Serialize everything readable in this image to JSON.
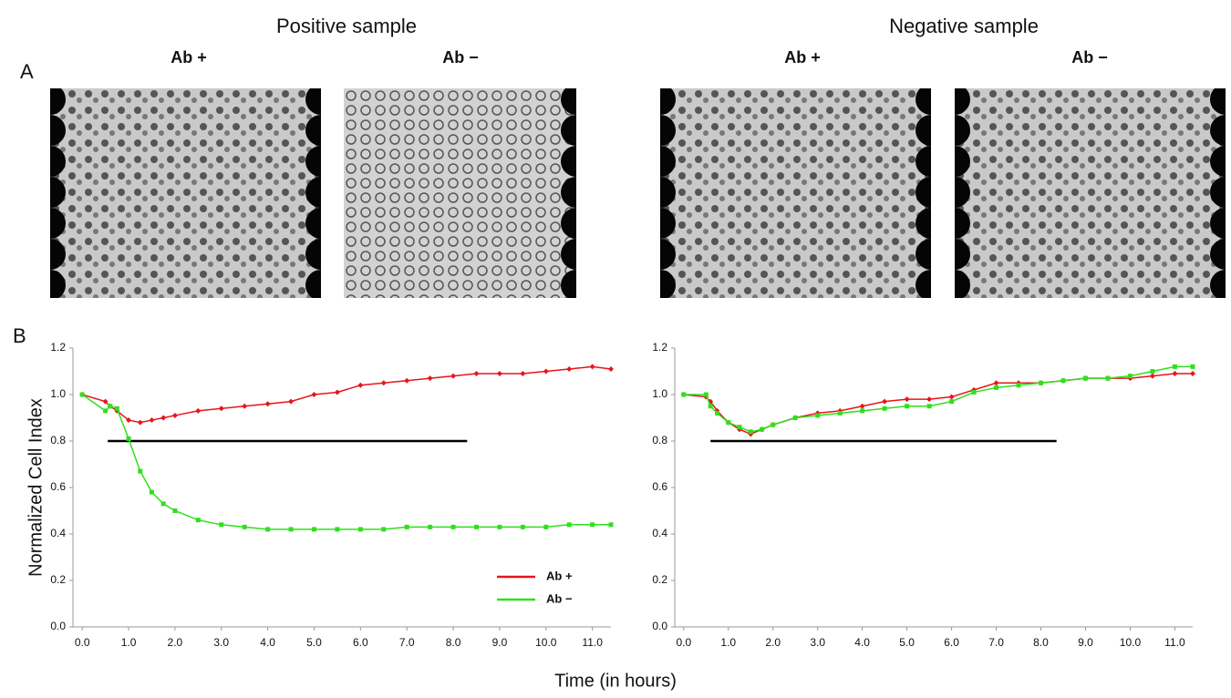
{
  "figure": {
    "panel_a": "A",
    "panel_b": "B",
    "ylabel": "Normalized Cell Index",
    "xlabel": "Time (in hours)"
  },
  "panels": [
    {
      "title": "Positive sample",
      "images": [
        "Ab +",
        "Ab −"
      ]
    },
    {
      "title": "Negative sample",
      "images": [
        "Ab +",
        "Ab −"
      ]
    }
  ],
  "chart_data": [
    {
      "type": "line",
      "legend": "lower right",
      "x": [
        0,
        0.5,
        0.6,
        0.75,
        1.0,
        1.25,
        1.5,
        1.75,
        2.0,
        2.5,
        3.0,
        3.5,
        4.0,
        4.5,
        5.0,
        5.5,
        6.0,
        6.5,
        7.0,
        7.5,
        8.0,
        8.5,
        9.0,
        9.5,
        10.0,
        10.5,
        11.0,
        11.4
      ],
      "series": [
        {
          "name": "Ab +",
          "color": "#e8141c",
          "values": [
            1.0,
            0.97,
            0.95,
            0.93,
            0.89,
            0.88,
            0.89,
            0.9,
            0.91,
            0.93,
            0.94,
            0.95,
            0.96,
            0.97,
            1.0,
            1.01,
            1.04,
            1.05,
            1.06,
            1.07,
            1.08,
            1.09,
            1.09,
            1.09,
            1.1,
            1.11,
            1.12,
            1.11
          ]
        },
        {
          "name": "Ab −",
          "color": "#2fe01c",
          "values": [
            1.0,
            0.93,
            0.95,
            0.94,
            0.81,
            0.67,
            0.58,
            0.53,
            0.5,
            0.46,
            0.44,
            0.43,
            0.42,
            0.42,
            0.42,
            0.42,
            0.42,
            0.42,
            0.43,
            0.43,
            0.43,
            0.43,
            0.43,
            0.43,
            0.43,
            0.44,
            0.44,
            0.44
          ]
        }
      ],
      "hline": {
        "y": 0.8,
        "xmin": 0.55,
        "xmax": 8.3,
        "color": "#000000"
      },
      "xlim": [
        -0.2,
        11.4
      ],
      "ylim": [
        0,
        1.2
      ],
      "xticks": [
        {
          "value": 0,
          "label": "0.0"
        },
        {
          "value": 1,
          "label": "1.0"
        },
        {
          "value": 2,
          "label": "2.0"
        },
        {
          "value": 3,
          "label": "3.0"
        },
        {
          "value": 4,
          "label": "4.0"
        },
        {
          "value": 5,
          "label": "5.0"
        },
        {
          "value": 6,
          "label": "6.0"
        },
        {
          "value": 7,
          "label": "7.0"
        },
        {
          "value": 8,
          "label": "8.0"
        },
        {
          "value": 9,
          "label": "9.0"
        },
        {
          "value": 10,
          "label": "10.0"
        },
        {
          "value": 11,
          "label": "11.0"
        }
      ],
      "yticks": [
        {
          "value": 0,
          "label": "0.0"
        },
        0.2,
        0.4,
        0.6,
        0.8,
        {
          "value": 1,
          "label": "1.0"
        },
        1.2
      ]
    },
    {
      "type": "line",
      "x": [
        0,
        0.5,
        0.6,
        0.75,
        1.0,
        1.25,
        1.5,
        1.75,
        2.0,
        2.5,
        3.0,
        3.5,
        4.0,
        4.5,
        5.0,
        5.5,
        6.0,
        6.5,
        7.0,
        7.5,
        8.0,
        8.5,
        9.0,
        9.5,
        10.0,
        10.5,
        11.0,
        11.4
      ],
      "series": [
        {
          "name": "Ab +",
          "color": "#e8141c",
          "values": [
            1.0,
            0.99,
            0.97,
            0.93,
            0.88,
            0.85,
            0.83,
            0.85,
            0.87,
            0.9,
            0.92,
            0.93,
            0.95,
            0.97,
            0.98,
            0.98,
            0.99,
            1.02,
            1.05,
            1.05,
            1.05,
            1.06,
            1.07,
            1.07,
            1.07,
            1.08,
            1.09,
            1.09
          ]
        },
        {
          "name": "Ab −",
          "color": "#2fe01c",
          "values": [
            1.0,
            1.0,
            0.95,
            0.92,
            0.88,
            0.86,
            0.84,
            0.85,
            0.87,
            0.9,
            0.91,
            0.92,
            0.93,
            0.94,
            0.95,
            0.95,
            0.97,
            1.01,
            1.03,
            1.04,
            1.05,
            1.06,
            1.07,
            1.07,
            1.08,
            1.1,
            1.12,
            1.12
          ]
        }
      ],
      "hline": {
        "y": 0.8,
        "xmin": 0.6,
        "xmax": 8.35,
        "color": "#000000"
      },
      "xlim": [
        -0.2,
        11.4
      ],
      "ylim": [
        0,
        1.2
      ],
      "xticks": [
        {
          "value": 0,
          "label": "0.0"
        },
        {
          "value": 1,
          "label": "1.0"
        },
        {
          "value": 2,
          "label": "2.0"
        },
        {
          "value": 3,
          "label": "3.0"
        },
        {
          "value": 4,
          "label": "4.0"
        },
        {
          "value": 5,
          "label": "5.0"
        },
        {
          "value": 6,
          "label": "6.0"
        },
        {
          "value": 7,
          "label": "7.0"
        },
        {
          "value": 8,
          "label": "8.0"
        },
        {
          "value": 9,
          "label": "9.0"
        },
        {
          "value": 10,
          "label": "10.0"
        },
        {
          "value": 11,
          "label": "11.0"
        }
      ],
      "yticks": [
        {
          "value": 0,
          "label": "0.0"
        },
        0.2,
        0.4,
        0.6,
        0.8,
        {
          "value": 1,
          "label": "1.0"
        },
        1.2
      ]
    }
  ]
}
